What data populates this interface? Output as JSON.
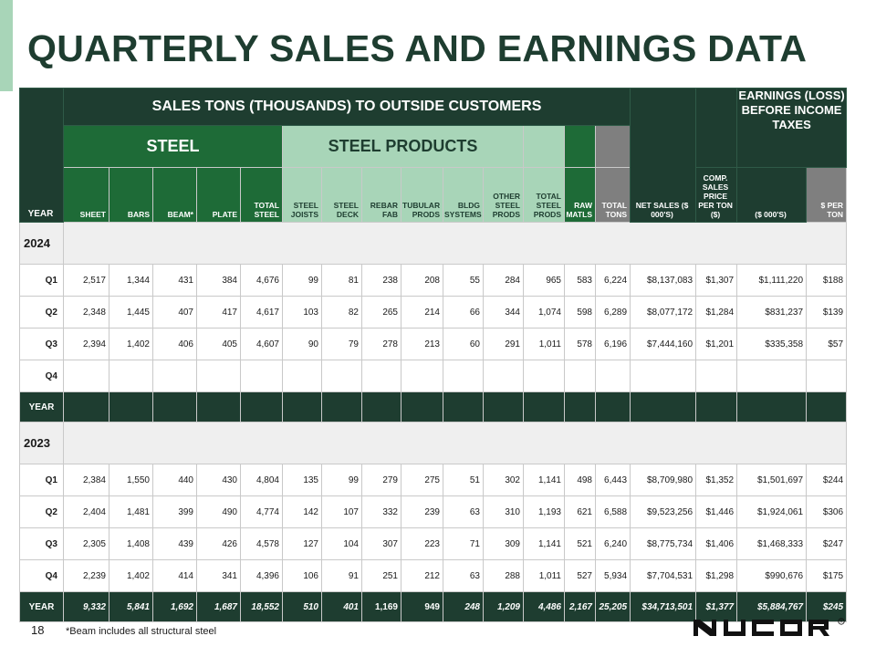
{
  "page_title": "QUARTERLY SALES AND EARNINGS DATA",
  "header": {
    "sales_title": "SALES TONS (THOUSANDS) TO OUTSIDE CUSTOMERS",
    "steel": "STEEL",
    "steel_products": "STEEL PRODUCTS",
    "earnings": "EARNINGS (LOSS) BEFORE INCOME TAXES",
    "comp_sales": "COMP. SALES PRICE PER TON ($)",
    "columns": [
      {
        "key": "year",
        "label": "YEAR"
      },
      {
        "key": "sheet",
        "label": "SHEET"
      },
      {
        "key": "bars",
        "label": "BARS"
      },
      {
        "key": "beam",
        "label": "BEAM*"
      },
      {
        "key": "plate",
        "label": "PLATE"
      },
      {
        "key": "total_steel",
        "label": "TOTAL STEEL"
      },
      {
        "key": "steel_joists",
        "label": "STEEL JOISTS"
      },
      {
        "key": "steel_deck",
        "label": "STEEL DECK"
      },
      {
        "key": "rebar_fab",
        "label": "REBAR FAB"
      },
      {
        "key": "tubular_prods",
        "label": "TUBULAR PRODS"
      },
      {
        "key": "bldg_systems",
        "label": "BLDG SYSTEMS"
      },
      {
        "key": "other_steel_prods",
        "label": "OTHER STEEL PRODS"
      },
      {
        "key": "total_steel_prods",
        "label": "TOTAL STEEL PRODS"
      },
      {
        "key": "raw_matls",
        "label": "RAW MATLS"
      },
      {
        "key": "total_tons",
        "label": "TOTAL TONS"
      },
      {
        "key": "net_sales",
        "label": "NET SALES ($ 000'S)"
      },
      {
        "key": "earnings_000s",
        "label": "($ 000'S)"
      },
      {
        "key": "per_ton",
        "label": "$ PER TON"
      }
    ]
  },
  "years": [
    {
      "label": "2024",
      "quarters": [
        {
          "q": "Q1",
          "values": [
            "2,517",
            "1,344",
            "431",
            "384",
            "4,676",
            "99",
            "81",
            "238",
            "208",
            "55",
            "284",
            "965",
            "583",
            "6,224",
            "$8,137,083",
            "$1,307",
            "$1,111,220",
            "$188"
          ]
        },
        {
          "q": "Q2",
          "values": [
            "2,348",
            "1,445",
            "407",
            "417",
            "4,617",
            "103",
            "82",
            "265",
            "214",
            "66",
            "344",
            "1,074",
            "598",
            "6,289",
            "$8,077,172",
            "$1,284",
            "$831,237",
            "$139"
          ]
        },
        {
          "q": "Q3",
          "values": [
            "2,394",
            "1,402",
            "406",
            "405",
            "4,607",
            "90",
            "79",
            "278",
            "213",
            "60",
            "291",
            "1,011",
            "578",
            "6,196",
            "$7,444,160",
            "$1,201",
            "$335,358",
            "$57"
          ]
        },
        {
          "q": "Q4",
          "values": [
            "",
            "",
            "",
            "",
            "",
            "",
            "",
            "",
            "",
            "",
            "",
            "",
            "",
            "",
            "",
            "",
            "",
            ""
          ]
        }
      ],
      "total": {
        "q": "YEAR",
        "values": [
          "",
          "",
          "",
          "",
          "",
          "",
          "",
          "",
          "",
          "",
          "",
          "",
          "",
          "",
          "",
          "",
          "",
          ""
        ]
      }
    },
    {
      "label": "2023",
      "quarters": [
        {
          "q": "Q1",
          "values": [
            "2,384",
            "1,550",
            "440",
            "430",
            "4,804",
            "135",
            "99",
            "279",
            "275",
            "51",
            "302",
            "1,141",
            "498",
            "6,443",
            "$8,709,980",
            "$1,352",
            "$1,501,697",
            "$244"
          ]
        },
        {
          "q": "Q2",
          "values": [
            "2,404",
            "1,481",
            "399",
            "490",
            "4,774",
            "142",
            "107",
            "332",
            "239",
            "63",
            "310",
            "1,193",
            "621",
            "6,588",
            "$9,523,256",
            "$1,446",
            "$1,924,061",
            "$306"
          ]
        },
        {
          "q": "Q3",
          "values": [
            "2,305",
            "1,408",
            "439",
            "426",
            "4,578",
            "127",
            "104",
            "307",
            "223",
            "71",
            "309",
            "1,141",
            "521",
            "6,240",
            "$8,775,734",
            "$1,406",
            "$1,468,333",
            "$247"
          ]
        },
        {
          "q": "Q4",
          "values": [
            "2,239",
            "1,402",
            "414",
            "341",
            "4,396",
            "106",
            "91",
            "251",
            "212",
            "63",
            "288",
            "1,011",
            "527",
            "5,934",
            "$7,704,531",
            "$1,298",
            "$990,676",
            "$175"
          ]
        }
      ],
      "total": {
        "q": "YEAR",
        "values": [
          "9,332",
          "5,841",
          "1,692",
          "1,687",
          "18,552",
          "510",
          "401",
          "1,169",
          "949",
          "248",
          "1,209",
          "4,486",
          "2,167",
          "25,205",
          "$34,713,501",
          "$1,377",
          "$5,884,767",
          "$245"
        ]
      }
    }
  ],
  "page_number": "18",
  "footnote": "*Beam includes all structural steel",
  "logo": "NUCOR",
  "colors": {
    "dark_green": "#1e3d30",
    "green": "#1e6b37",
    "light_green": "#a8d5b8",
    "gray": "#7f7f7f"
  }
}
